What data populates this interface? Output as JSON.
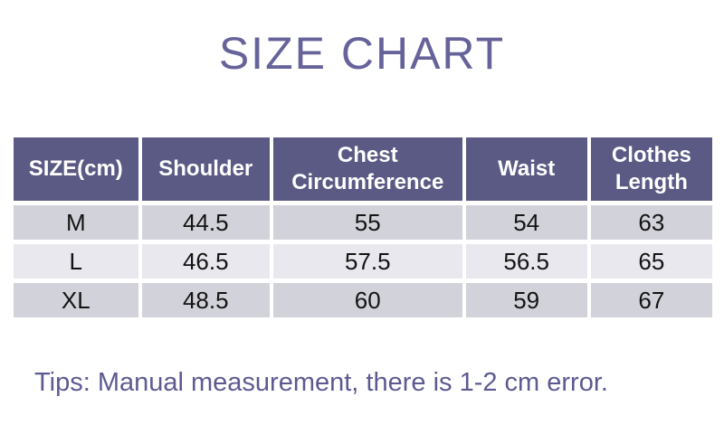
{
  "page": {
    "title": "SIZE CHART",
    "tip": "Tips: Manual measurement, there is 1-2 cm error."
  },
  "table": {
    "headers": [
      "SIZE(cm)",
      "Shoulder",
      "Chest Circumference",
      "Waist",
      "Clothes Length"
    ],
    "rows": [
      {
        "cells": [
          "M",
          "44.5",
          "55",
          "54",
          "63"
        ]
      },
      {
        "cells": [
          "L",
          "46.5",
          "57.5",
          "56.5",
          "65"
        ]
      },
      {
        "cells": [
          "XL",
          "48.5",
          "60",
          "59",
          "67"
        ]
      }
    ]
  },
  "colors": {
    "title_text": "#66639b",
    "tip_text": "#5d5a92",
    "header_background": "#5b5a84",
    "header_text": "#ffffff",
    "row_band_dark": "#d2d2da",
    "row_band_light": "#e8e8ee",
    "cell_text": "#141414",
    "grid_gap": "#ffffff"
  }
}
